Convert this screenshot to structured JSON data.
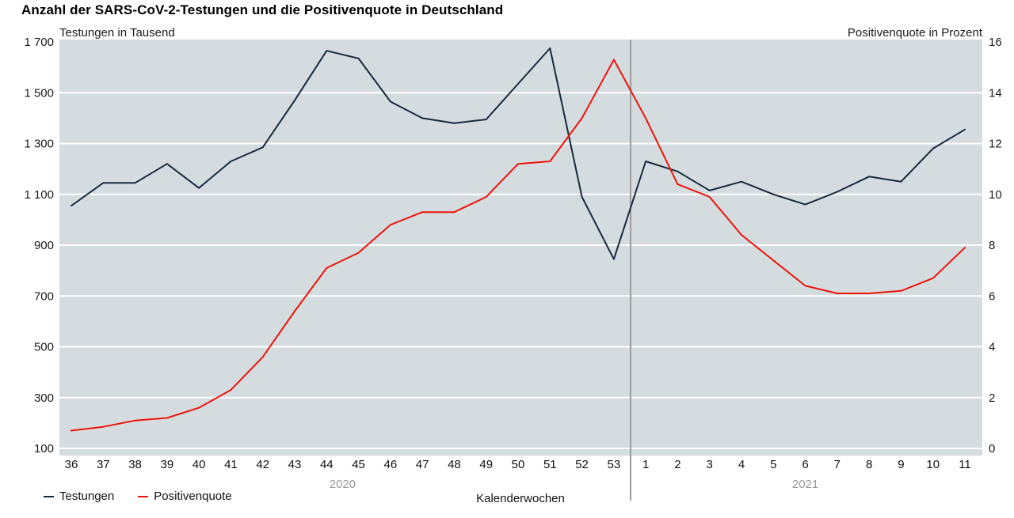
{
  "chart_data": {
    "type": "line",
    "title": "Anzahl der SARS-CoV-2-Testungen und die Positivenquote in Deutschland",
    "xlabel": "Kalenderwochen",
    "x_categories": [
      "36",
      "37",
      "38",
      "39",
      "40",
      "41",
      "42",
      "43",
      "44",
      "45",
      "46",
      "47",
      "48",
      "49",
      "50",
      "51",
      "52",
      "53",
      "1",
      "2",
      "3",
      "4",
      "5",
      "6",
      "7",
      "8",
      "9",
      "10",
      "11"
    ],
    "year_groups": [
      {
        "label": "2020",
        "from_index": 0,
        "to_index": 17
      },
      {
        "label": "2021",
        "from_index": 18,
        "to_index": 28
      }
    ],
    "left_axis": {
      "label": "Testungen in Tausend",
      "min": 100,
      "max": 1700,
      "tick_step": 200,
      "tick_labels": [
        "100",
        "300",
        "500",
        "700",
        "900",
        "1 100",
        "1 300",
        "1 500",
        "1 700"
      ]
    },
    "right_axis": {
      "label": "Positivenquote in Prozent",
      "min": 0,
      "max": 16,
      "tick_step": 2,
      "tick_labels": [
        "0",
        "2",
        "4",
        "6",
        "8",
        "10",
        "12",
        "14",
        "16"
      ]
    },
    "series": [
      {
        "name": "Testungen",
        "axis": "left",
        "color": "#17293c",
        "values": [
          1055,
          1145,
          1145,
          1220,
          1125,
          1230,
          1285,
          1470,
          1665,
          1635,
          1465,
          1400,
          1380,
          1395,
          1535,
          1675,
          1090,
          845,
          1230,
          1190,
          1115,
          1150,
          1100,
          1060,
          1110,
          1170,
          1150,
          1280,
          1355
        ]
      },
      {
        "name": "Positivenquote",
        "axis": "right",
        "color": "#ee1409",
        "values": [
          0.7,
          0.85,
          1.1,
          1.2,
          1.6,
          2.3,
          3.6,
          5.4,
          7.1,
          7.7,
          8.8,
          9.3,
          9.3,
          9.9,
          11.2,
          11.3,
          13.0,
          15.3,
          13.0,
          10.4,
          9.9,
          8.4,
          7.4,
          6.4,
          6.1,
          6.1,
          6.2,
          6.7,
          7.9
        ]
      }
    ],
    "grid": {
      "color": "#ffffff",
      "plot_background": "#d5dce0",
      "divider_color": "#9b9b9b",
      "year_label_color": "#999999"
    },
    "legend_position": "bottom-left"
  }
}
